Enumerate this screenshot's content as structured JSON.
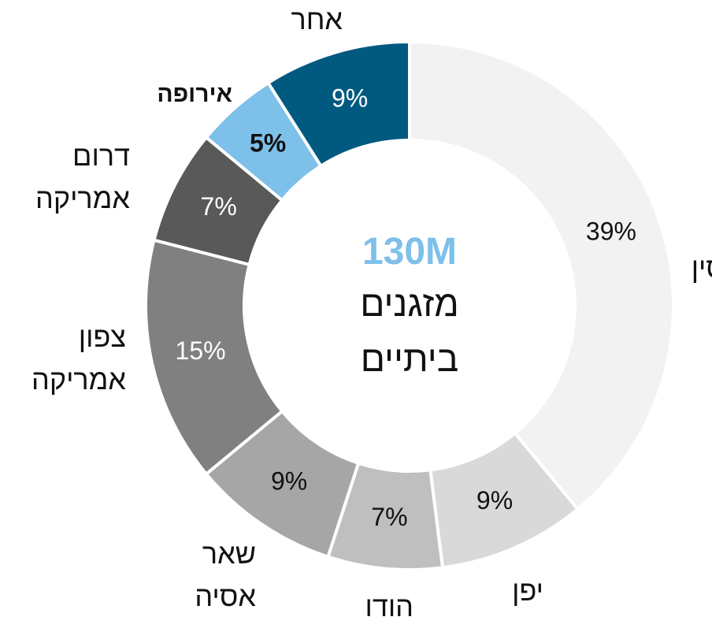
{
  "chart_data": {
    "type": "donut",
    "center_value": "130M",
    "center_label": "מזגנים ביתיים",
    "categories": [
      "סין",
      "יפן",
      "הודו",
      "שאר אסיה",
      "צפון אמריקה",
      "דרום אמריקה",
      "אירופה",
      "אחר"
    ],
    "values": [
      39,
      9,
      7,
      9,
      15,
      7,
      5,
      9
    ],
    "value_labels": [
      "39%",
      "9%",
      "7%",
      "9%",
      "15%",
      "7%",
      "5%",
      "9%"
    ],
    "colors": [
      "#f2f2f2",
      "#d9d9d9",
      "#bfbfbf",
      "#a6a6a6",
      "#808080",
      "#595959",
      "#7dc0ea",
      "#005a80"
    ]
  }
}
